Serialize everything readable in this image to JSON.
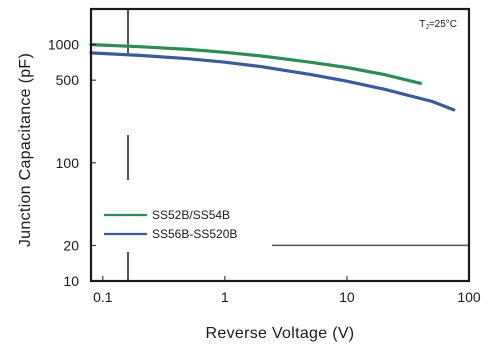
{
  "chart_data": {
    "type": "line",
    "title": "",
    "xlabel": "Reverse Voltage (V)",
    "ylabel": "Junction Capacitance (pF)",
    "xscale": "log",
    "yscale": "log",
    "xlim": [
      0.08,
      100
    ],
    "ylim": [
      10,
      2000
    ],
    "x_ticks": [
      {
        "value": 0.1,
        "label": "0.1"
      },
      {
        "value": 1,
        "label": "1"
      },
      {
        "value": 10,
        "label": "10"
      },
      {
        "value": 100,
        "label": "100"
      }
    ],
    "y_ticks": [
      {
        "value": 10,
        "label": "10"
      },
      {
        "value": 20,
        "label": "20"
      },
      {
        "value": 100,
        "label": "100"
      },
      {
        "value": 500,
        "label": "500"
      },
      {
        "value": 1000,
        "label": "1000"
      }
    ],
    "annotation": {
      "main": "T",
      "sub": "J",
      "tail": "=25°C"
    },
    "legend_position": "bottom-left",
    "grid": false,
    "series": [
      {
        "name": "SS52B/SS54B",
        "color": "#2e8b57",
        "x": [
          0.08,
          0.1,
          0.2,
          0.5,
          1,
          2,
          5,
          10,
          20,
          40
        ],
        "y": [
          1000,
          990,
          960,
          910,
          860,
          800,
          710,
          640,
          560,
          470
        ]
      },
      {
        "name": "SS56B-SS520B",
        "color": "#3a5a9a",
        "x": [
          0.08,
          0.1,
          0.2,
          0.5,
          1,
          2,
          5,
          10,
          20,
          50,
          75
        ],
        "y": [
          850,
          840,
          810,
          760,
          710,
          650,
          560,
          490,
          420,
          330,
          280
        ]
      }
    ]
  }
}
